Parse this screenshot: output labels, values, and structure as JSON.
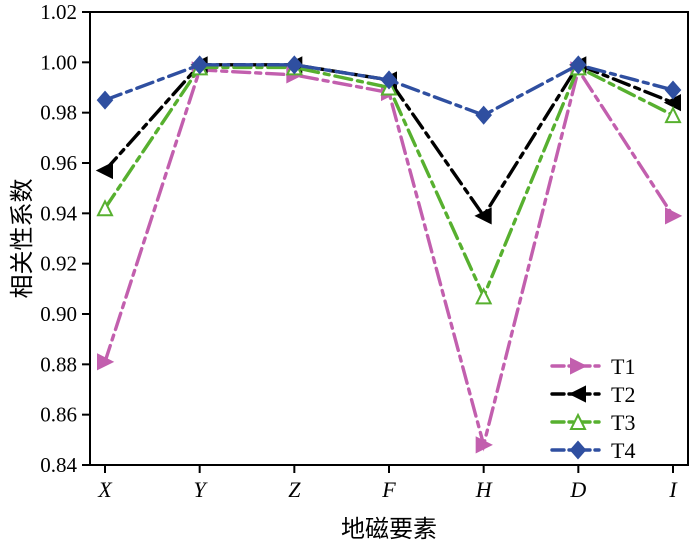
{
  "chart_data": {
    "type": "line",
    "title": "",
    "xlabel": "地磁要素",
    "ylabel": "相关性系数",
    "categories": [
      "X",
      "Y",
      "Z",
      "F",
      "H",
      "D",
      "I"
    ],
    "ylim": [
      0.84,
      1.02
    ],
    "ytick_step": 0.02,
    "grid": false,
    "legend_position": "lower-right",
    "line_style": "dash-dot-dot",
    "series": [
      {
        "name": "T1",
        "color": "#c25fae",
        "marker": "triangle-right",
        "marker_fill": "solid",
        "values": [
          0.881,
          0.997,
          0.995,
          0.988,
          0.848,
          0.997,
          0.939
        ]
      },
      {
        "name": "T2",
        "color": "#000000",
        "marker": "triangle-left",
        "marker_fill": "solid",
        "values": [
          0.957,
          0.999,
          0.999,
          0.993,
          0.939,
          0.999,
          0.984
        ]
      },
      {
        "name": "T3",
        "color": "#57b02f",
        "marker": "triangle-up",
        "marker_fill": "open",
        "values": [
          0.942,
          0.998,
          0.998,
          0.99,
          0.907,
          0.998,
          0.979
        ]
      },
      {
        "name": "T4",
        "color": "#2f4fa0",
        "marker": "diamond",
        "marker_fill": "solid",
        "values": [
          0.985,
          0.999,
          0.999,
          0.993,
          0.979,
          0.999,
          0.989
        ]
      }
    ]
  }
}
